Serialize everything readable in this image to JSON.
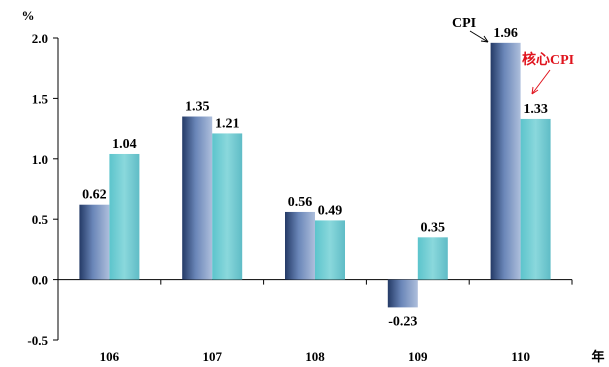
{
  "chart_data": {
    "type": "bar",
    "title": "",
    "ylabel": "%",
    "xlabel": "年",
    "categories": [
      "106",
      "107",
      "108",
      "109",
      "110"
    ],
    "series": [
      {
        "name": "CPI",
        "values": [
          0.62,
          1.35,
          0.56,
          -0.23,
          1.96
        ],
        "labels": [
          "0.62",
          "1.35",
          "0.56",
          "-0.23",
          "1.96"
        ],
        "color": "#4a6a9c"
      },
      {
        "name": "核心CPI",
        "values": [
          1.04,
          1.21,
          0.49,
          0.35,
          1.33
        ],
        "labels": [
          "1.04",
          "1.21",
          "0.49",
          "0.35",
          "1.33"
        ],
        "color": "#5cc4cc"
      }
    ],
    "ylim": [
      -0.5,
      2.0
    ],
    "yticks": [
      "2.0",
      "1.5",
      "1.0",
      "0.5",
      "0.0",
      "-0.5"
    ],
    "ytick_values": [
      2.0,
      1.5,
      1.0,
      0.5,
      0.0,
      -0.5
    ],
    "grid": false,
    "annotations": [
      {
        "text": "CPI",
        "color": "#000000"
      },
      {
        "text": "核心CPI",
        "color": "#e0141e"
      }
    ]
  }
}
